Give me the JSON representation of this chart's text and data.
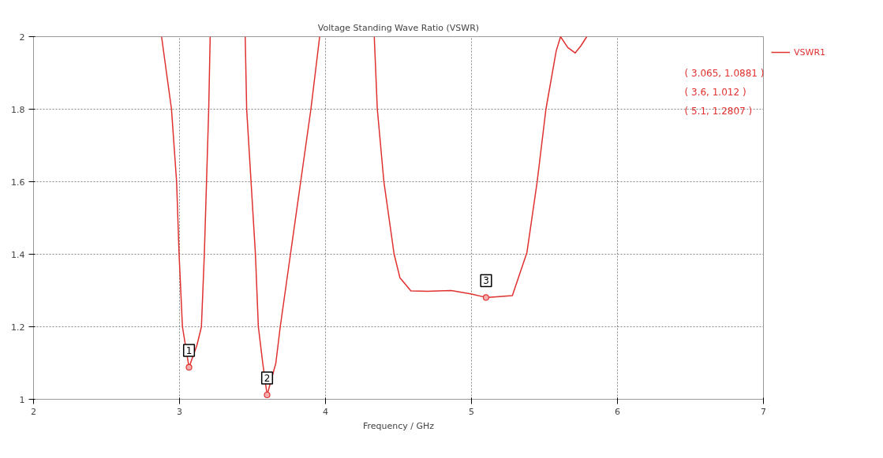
{
  "chart_data": {
    "type": "line",
    "title": "Voltage Standing Wave Ratio (VSWR)",
    "xlabel": "Frequency / GHz",
    "xlim": [
      2,
      7
    ],
    "ylim": [
      1,
      2
    ],
    "xticks": [
      2,
      3,
      4,
      5,
      6,
      7
    ],
    "yticks": [
      1,
      1.2,
      1.4,
      1.6,
      1.8,
      2
    ],
    "grid": true,
    "legend": "top right",
    "line_style": "solid",
    "series": [
      {
        "name": "VSWR1",
        "color": "#e0302f",
        "x": [
          2.877,
          2.945,
          2.98,
          2.997,
          3.02,
          3.065,
          3.12,
          3.15,
          3.17,
          3.185,
          3.2,
          3.21,
          3.3,
          3.45,
          3.46,
          3.49,
          3.52,
          3.54,
          3.57,
          3.6,
          3.66,
          3.69,
          3.76,
          3.83,
          3.9,
          3.96,
          4.1,
          4.334,
          4.355,
          4.4,
          4.47,
          4.51,
          4.585,
          4.7,
          4.86,
          5.0,
          5.1,
          5.28,
          5.38,
          5.45,
          5.51,
          5.58,
          5.61,
          5.66,
          5.71,
          5.75,
          5.79
        ],
        "values": [
          2,
          1.8,
          1.6,
          1.4,
          1.2,
          1.0881,
          1.15,
          1.2,
          1.4,
          1.6,
          1.8,
          2,
          null,
          2,
          1.8,
          1.6,
          1.4,
          1.2,
          1.1,
          1.012,
          1.1,
          1.2,
          1.4,
          1.6,
          1.8,
          2,
          null,
          2,
          1.8,
          1.6,
          1.4,
          1.335,
          1.299,
          1.298,
          1.3,
          1.29,
          1.2807,
          1.286,
          1.405,
          1.6,
          1.8,
          1.96,
          2,
          1.97,
          1.955,
          1.975,
          2
        ]
      },
      {
        "type": "scatter",
        "color": "#e0302f",
        "marker": "circle",
        "x": [
          3.065,
          3.6,
          5.1
        ],
        "values": [
          1.0881,
          1.012,
          1.2807
        ]
      }
    ],
    "annotations": [
      {
        "text": "1",
        "x": 3.065,
        "y": 1.0881
      },
      {
        "text": "2",
        "x": 3.6,
        "y": 1.012
      },
      {
        "text": "3",
        "x": 5.1,
        "y": 1.2807
      },
      "( 3.065, 1.0881 )",
      "( 3.6, 1.012 )",
      "( 5.1, 1.2807 )"
    ]
  }
}
